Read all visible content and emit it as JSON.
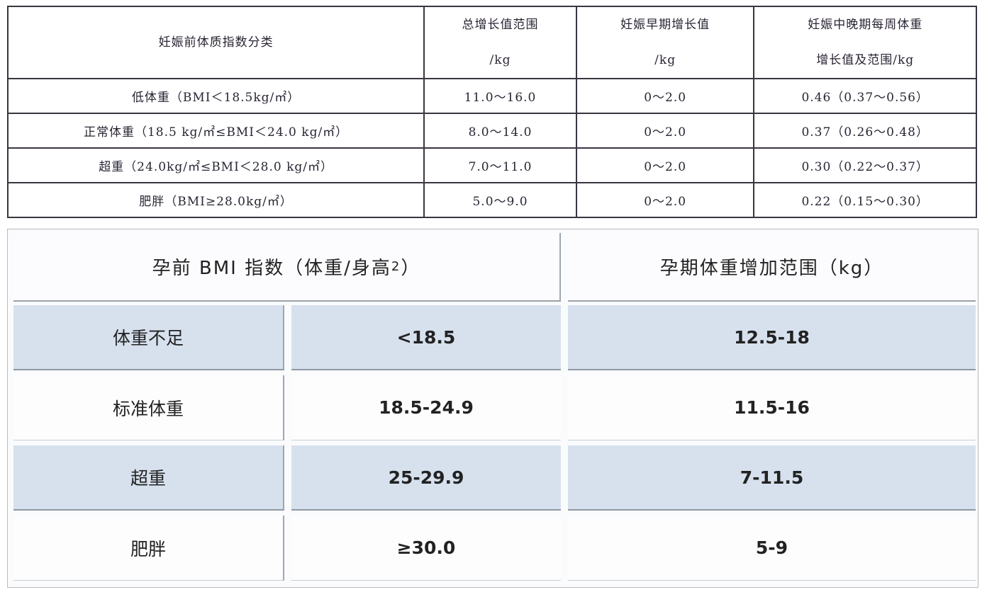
{
  "table1": {
    "headers": [
      {
        "line1": "妊娠前体质指数分类",
        "line2": ""
      },
      {
        "line1": "总增长值范围",
        "line2": "/kg"
      },
      {
        "line1": "妊娠早期增长值",
        "line2": "/kg"
      },
      {
        "line1": "妊娠中晚期每周体重",
        "line2": "增长值及范围/kg"
      }
    ],
    "rows": [
      [
        "低体重（BMI＜18.5kg/㎡）",
        "11.0～16.0",
        "0～2.0",
        "0.46（0.37～0.56）"
      ],
      [
        "正常体重（18.5 kg/㎡≤BMI＜24.0 kg/㎡）",
        "8.0～14.0",
        "0～2.0",
        "0.37（0.26～0.48）"
      ],
      [
        "超重（24.0kg/㎡≤BMI＜28.0 kg/㎡）",
        "7.0～11.0",
        "0～2.0",
        "0.30（0.22～0.37）"
      ],
      [
        "肥胖（BMI≥28.0kg/㎡）",
        "5.0～9.0",
        "0～2.0",
        "0.22（0.15～0.30）"
      ]
    ]
  },
  "table2": {
    "header_left": "孕前 BMI 指数（体重/身高",
    "header_left_sup": "2",
    "header_left_close": "）",
    "header_right": "孕期体重增加范围（kg）",
    "rows": [
      [
        "体重不足",
        "<18.5",
        "12.5-18"
      ],
      [
        "标准体重",
        "18.5-24.9",
        "11.5-16"
      ],
      [
        "超重",
        "25-29.9",
        "7-11.5"
      ],
      [
        "肥胖",
        "≥30.0",
        "5-9"
      ]
    ],
    "shade_color": "#d7e1ee"
  }
}
